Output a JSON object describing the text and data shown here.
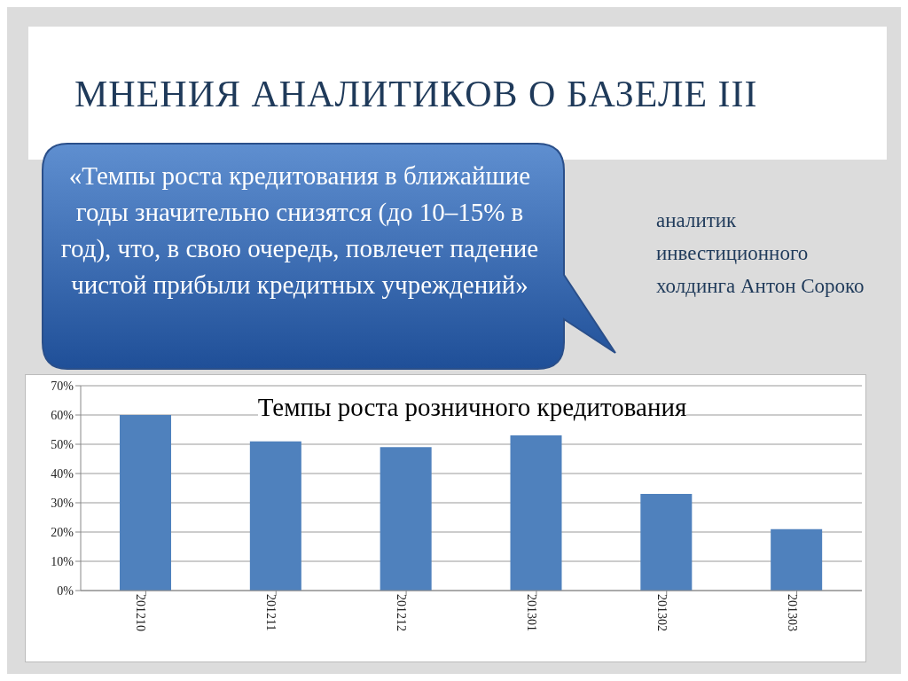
{
  "chart_data": {
    "type": "bar",
    "title": "МНЕНИЯ АНАЛИТИКОВ О БАЗЕЛЕ III",
    "subtitle": "Темпы роста розничного кредитования",
    "annotations": [
      "«Темпы роста кредитования в ближайшие годы значительно снизятся (до 10–15% в год), что, в свою очередь, повлечет падение чистой прибыли кредитных учреждений»",
      "аналитик инвестиционного холдинга Антон Сороко"
    ],
    "categories": [
      "201210",
      "201211",
      "201212",
      "201301",
      "201302",
      "201303"
    ],
    "values": [
      60,
      51,
      49,
      53,
      33,
      21
    ],
    "color": "#4f81bd",
    "ylim": [
      0,
      70
    ],
    "yticks": [
      {
        "value": 0,
        "label": "0%"
      },
      {
        "value": 10,
        "label": "10%"
      },
      {
        "value": 20,
        "label": "20%"
      },
      {
        "value": 30,
        "label": "30%"
      },
      {
        "value": 40,
        "label": "40%"
      },
      {
        "value": 50,
        "label": "50%"
      },
      {
        "value": 60,
        "label": "60%"
      },
      {
        "value": 70,
        "label": "70%"
      }
    ],
    "grid": "y",
    "legend": false
  }
}
